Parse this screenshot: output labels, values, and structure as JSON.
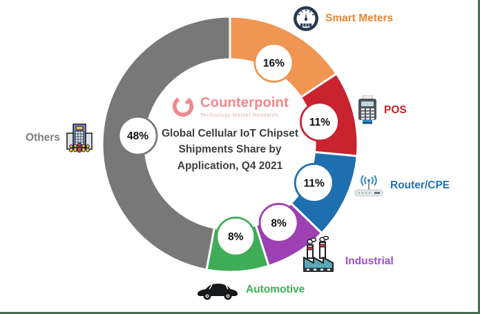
{
  "frame": {
    "border_color": "#44704F",
    "background": "#FFFFFF"
  },
  "logo": {
    "brand": "Counterpoint",
    "tagline": "Technology Market Research",
    "brand_color": "#F2888D",
    "tagline_color": "#E2ACAE"
  },
  "title_lines": [
    "Global Cellular IoT Chipset",
    "Shipments Share by",
    "Application, Q4 2021"
  ],
  "chart_data": {
    "type": "pie",
    "donut": true,
    "title": "Global Cellular IoT Chipset Shipments Share by Application, Q4 2021",
    "start_angle_deg": 0,
    "direction": "clockwise",
    "legend_position": "around",
    "segments": [
      {
        "label": "Smart Meters",
        "value_pct": 16,
        "pct_label": "16%",
        "color": "#F09552",
        "label_color": "#ED852F",
        "icon": "gauge-icon"
      },
      {
        "label": "POS",
        "value_pct": 11,
        "pct_label": "11%",
        "color": "#C8232E",
        "label_color": "#CB2128",
        "icon": "pos-terminal-icon"
      },
      {
        "label": "Router/CPE",
        "value_pct": 11,
        "pct_label": "11%",
        "color": "#1E6FAF",
        "label_color": "#2071B8",
        "icon": "router-icon"
      },
      {
        "label": "Industrial",
        "value_pct": 8,
        "pct_label": "8%",
        "color": "#9C40B4",
        "label_color": "#9A50C7",
        "icon": "factory-icon"
      },
      {
        "label": "Automotive",
        "value_pct": 8,
        "pct_label": "8%",
        "color": "#3FAD58",
        "label_color": "#3CB055",
        "icon": "car-icon"
      },
      {
        "label": "Others",
        "value_pct": 48,
        "pct_label": "48%",
        "color": "#787878",
        "label_color": "#7D7D7D",
        "icon": "building-icon"
      }
    ]
  }
}
